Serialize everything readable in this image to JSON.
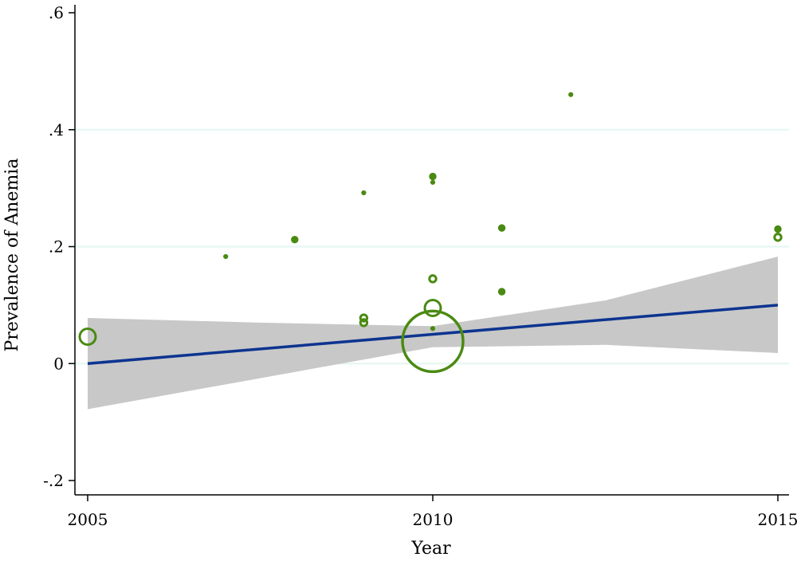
{
  "chart_data": {
    "type": "scatter",
    "xlabel": "Year",
    "ylabel": "Prevalence of Anemia",
    "xlim": [
      2005,
      2015
    ],
    "ylim": [
      -0.2,
      0.6
    ],
    "x_ticks": [
      2005,
      2010,
      2015
    ],
    "x_tick_labels": [
      "2005",
      "2010",
      "2015"
    ],
    "y_ticks": [
      -0.2,
      0,
      0.2,
      0.4,
      0.6
    ],
    "y_tick_labels": [
      "-.2",
      "0",
      ".2",
      ".4",
      ".6"
    ],
    "gridlines_y": [
      0,
      0.2,
      0.4
    ],
    "colors": {
      "points": "#4a8a12",
      "fit_line": "#0d3490",
      "confidence_band": "#c8c8c8",
      "grid": "#e3f6f2",
      "axis": "#000000"
    },
    "points": [
      {
        "x": 2005,
        "y": 0.046,
        "size": "medium",
        "style": "hollow"
      },
      {
        "x": 2007,
        "y": 0.183,
        "size": "tiny",
        "style": "filled"
      },
      {
        "x": 2008,
        "y": 0.212,
        "size": "small",
        "style": "filled"
      },
      {
        "x": 2009,
        "y": 0.292,
        "size": "tiny",
        "style": "filled"
      },
      {
        "x": 2009,
        "y": 0.078,
        "size": "small",
        "style": "hollow"
      },
      {
        "x": 2009,
        "y": 0.07,
        "size": "small",
        "style": "hollow"
      },
      {
        "x": 2010,
        "y": 0.32,
        "size": "small",
        "style": "filled"
      },
      {
        "x": 2010,
        "y": 0.31,
        "size": "tiny",
        "style": "filled"
      },
      {
        "x": 2010,
        "y": 0.145,
        "size": "small",
        "style": "hollow"
      },
      {
        "x": 2010,
        "y": 0.095,
        "size": "medium",
        "style": "hollow"
      },
      {
        "x": 2010,
        "y": 0.06,
        "size": "tiny",
        "style": "filled"
      },
      {
        "x": 2010,
        "y": 0.038,
        "size": "large",
        "style": "hollow"
      },
      {
        "x": 2011,
        "y": 0.232,
        "size": "small",
        "style": "filled"
      },
      {
        "x": 2011,
        "y": 0.123,
        "size": "small",
        "style": "filled"
      },
      {
        "x": 2012,
        "y": 0.46,
        "size": "tiny",
        "style": "filled"
      },
      {
        "x": 2015,
        "y": 0.23,
        "size": "small",
        "style": "filled"
      },
      {
        "x": 2015,
        "y": 0.216,
        "size": "small",
        "style": "hollow"
      }
    ],
    "fit_line": [
      {
        "x": 2005,
        "y": 0.0
      },
      {
        "x": 2015,
        "y": 0.1
      }
    ],
    "confidence_band": {
      "x": [
        2005,
        2007.5,
        2010,
        2012.5,
        2015
      ],
      "lower": [
        -0.078,
        -0.025,
        0.028,
        0.032,
        0.018
      ],
      "upper": [
        0.078,
        0.07,
        0.064,
        0.108,
        0.183
      ]
    }
  }
}
